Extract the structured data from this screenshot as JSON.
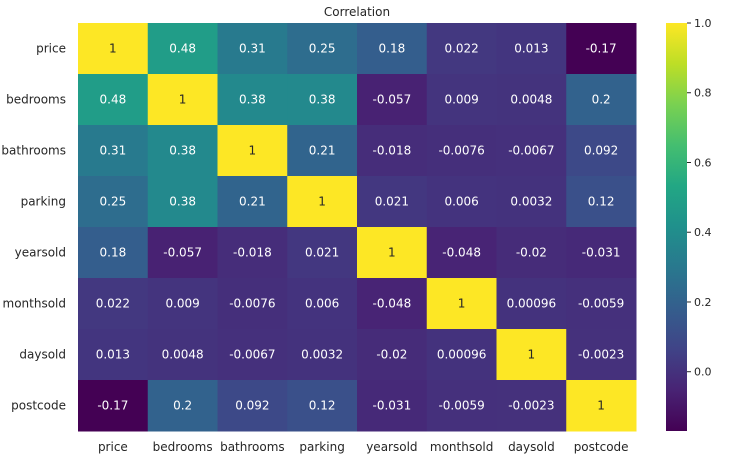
{
  "chart_data": {
    "type": "heatmap",
    "title": "Correlation",
    "colormap": "viridis",
    "categories": [
      "price",
      "bedrooms",
      "bathrooms",
      "parking",
      "yearsold",
      "monthsold",
      "daysold",
      "postcode"
    ],
    "values": [
      [
        1,
        0.48,
        0.31,
        0.25,
        0.18,
        0.022,
        0.013,
        -0.17
      ],
      [
        0.48,
        1,
        0.38,
        0.38,
        -0.057,
        0.009,
        0.0048,
        0.2
      ],
      [
        0.31,
        0.38,
        1,
        0.21,
        -0.018,
        -0.0076,
        -0.0067,
        0.092
      ],
      [
        0.25,
        0.38,
        0.21,
        1,
        0.021,
        0.006,
        0.0032,
        0.12
      ],
      [
        0.18,
        -0.057,
        -0.018,
        0.021,
        1,
        -0.048,
        -0.02,
        -0.031
      ],
      [
        0.022,
        0.009,
        -0.0076,
        0.006,
        -0.048,
        1,
        0.00096,
        -0.0059
      ],
      [
        0.013,
        0.0048,
        -0.0067,
        0.0032,
        -0.02,
        0.00096,
        1,
        -0.0023
      ],
      [
        -0.17,
        0.2,
        0.092,
        0.12,
        -0.031,
        -0.0059,
        -0.0023,
        1
      ]
    ],
    "labels": [
      [
        "1",
        "0.48",
        "0.31",
        "0.25",
        "0.18",
        "0.022",
        "0.013",
        "-0.17"
      ],
      [
        "0.48",
        "1",
        "0.38",
        "0.38",
        "-0.057",
        "0.009",
        "0.0048",
        "0.2"
      ],
      [
        "0.31",
        "0.38",
        "1",
        "0.21",
        "-0.018",
        "-0.0076",
        "-0.0067",
        "0.092"
      ],
      [
        "0.25",
        "0.38",
        "0.21",
        "1",
        "0.021",
        "0.006",
        "0.0032",
        "0.12"
      ],
      [
        "0.18",
        "-0.057",
        "-0.018",
        "0.021",
        "1",
        "-0.048",
        "-0.02",
        "-0.031"
      ],
      [
        "0.022",
        "0.009",
        "-0.0076",
        "0.006",
        "-0.048",
        "1",
        "0.00096",
        "-0.0059"
      ],
      [
        "0.013",
        "0.0048",
        "-0.0067",
        "0.0032",
        "-0.02",
        "0.00096",
        "1",
        "-0.0023"
      ],
      [
        "-0.17",
        "0.2",
        "0.092",
        "0.12",
        "-0.031",
        "-0.0059",
        "-0.0023",
        "1"
      ]
    ],
    "color_range": [
      -0.17,
      1
    ],
    "colorbar_ticks": [
      1.0,
      0.8,
      0.6,
      0.4,
      0.2,
      0.0
    ],
    "colorbar_tick_labels": [
      "1.0",
      "0.8",
      "0.6",
      "0.4",
      "0.2",
      "0.0"
    ],
    "text_color_light": "#ffffff",
    "text_color_dark": "#262626"
  }
}
